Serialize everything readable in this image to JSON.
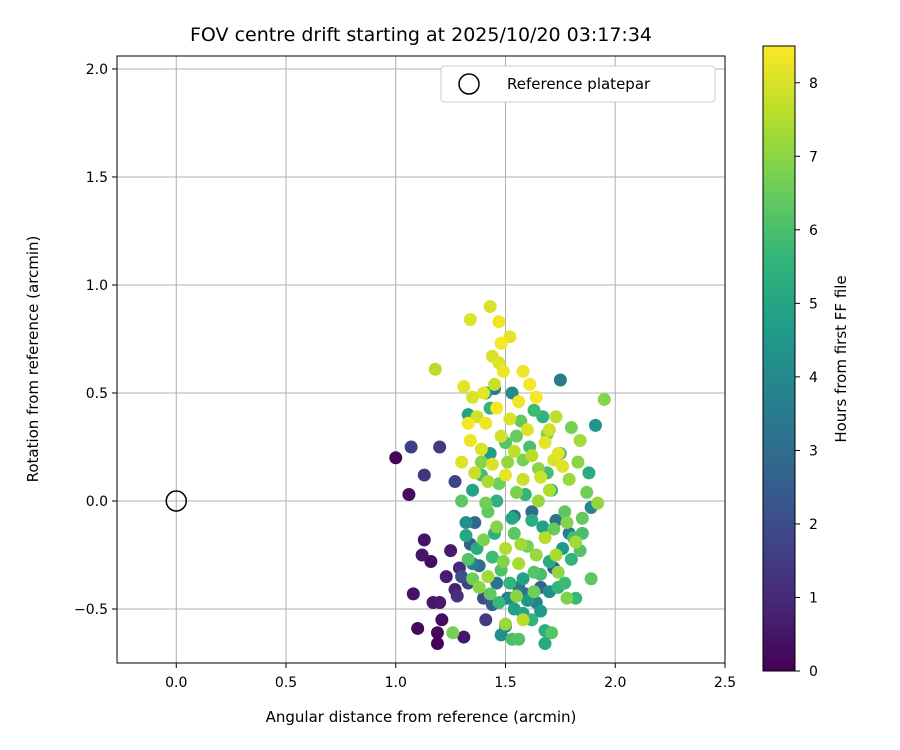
{
  "chart_data": {
    "type": "scatter",
    "title": "FOV centre drift starting at 2025/10/20 03:17:34",
    "xlabel": "Angular distance from reference (arcmin)",
    "ylabel": "Rotation from reference (arcmin)",
    "xlim": [
      -0.27,
      2.5
    ],
    "ylim": [
      -0.75,
      2.06
    ],
    "xticks": [
      0.0,
      0.5,
      1.0,
      1.5,
      2.0,
      2.5
    ],
    "xtick_labels": [
      "0.0",
      "0.5",
      "1.0",
      "1.5",
      "2.0",
      "2.5"
    ],
    "yticks": [
      -0.5,
      0.0,
      0.5,
      1.0,
      1.5,
      2.0
    ],
    "ytick_labels": [
      "−0.5",
      "0.0",
      "0.5",
      "1.0",
      "1.5",
      "2.0"
    ],
    "grid": true,
    "legend": {
      "position": "top-right",
      "entries": [
        "Reference platepar"
      ]
    },
    "reference_point": {
      "x": 0.0,
      "y": 0.0,
      "label": "Reference platepar"
    },
    "colorbar": {
      "label": "Hours from first FF file",
      "range": [
        0,
        8.5
      ],
      "ticks": [
        0,
        1,
        2,
        3,
        4,
        5,
        6,
        7,
        8
      ],
      "colormap": "viridis",
      "colors": [
        "#440154",
        "#482878",
        "#3e4989",
        "#31688e",
        "#26828e",
        "#1f9e89",
        "#35b779",
        "#6ece58",
        "#b5de2b",
        "#fde725"
      ]
    },
    "points": [
      {
        "x": 1.0,
        "y": 0.2,
        "t": 0.1
      },
      {
        "x": 1.06,
        "y": 0.03,
        "t": 0.3
      },
      {
        "x": 1.08,
        "y": -0.43,
        "t": 0.4
      },
      {
        "x": 1.1,
        "y": -0.59,
        "t": 0.2
      },
      {
        "x": 1.12,
        "y": -0.25,
        "t": 0.5
      },
      {
        "x": 1.13,
        "y": -0.18,
        "t": 0.4
      },
      {
        "x": 1.16,
        "y": -0.28,
        "t": 0.3
      },
      {
        "x": 1.17,
        "y": -0.47,
        "t": 0.5
      },
      {
        "x": 1.19,
        "y": -0.61,
        "t": 0.2
      },
      {
        "x": 1.19,
        "y": -0.66,
        "t": 0.1
      },
      {
        "x": 1.2,
        "y": -0.47,
        "t": 0.6
      },
      {
        "x": 1.21,
        "y": -0.55,
        "t": 0.3
      },
      {
        "x": 1.23,
        "y": -0.35,
        "t": 0.7
      },
      {
        "x": 1.25,
        "y": -0.23,
        "t": 0.6
      },
      {
        "x": 1.27,
        "y": -0.41,
        "t": 0.8
      },
      {
        "x": 1.29,
        "y": -0.31,
        "t": 1.0
      },
      {
        "x": 1.31,
        "y": -0.63,
        "t": 0.5
      },
      {
        "x": 1.07,
        "y": 0.25,
        "t": 1.6
      },
      {
        "x": 1.2,
        "y": 0.25,
        "t": 1.5
      },
      {
        "x": 1.13,
        "y": 0.12,
        "t": 1.3
      },
      {
        "x": 1.27,
        "y": 0.09,
        "t": 1.8
      },
      {
        "x": 1.28,
        "y": -0.44,
        "t": 1.2
      },
      {
        "x": 1.33,
        "y": -0.38,
        "t": 1.7
      },
      {
        "x": 1.3,
        "y": -0.35,
        "t": 2.2
      },
      {
        "x": 1.34,
        "y": -0.2,
        "t": 2.5
      },
      {
        "x": 1.36,
        "y": -0.1,
        "t": 2.8
      },
      {
        "x": 1.38,
        "y": -0.3,
        "t": 3.0
      },
      {
        "x": 1.4,
        "y": -0.45,
        "t": 2.0
      },
      {
        "x": 1.41,
        "y": -0.55,
        "t": 1.5
      },
      {
        "x": 1.44,
        "y": -0.48,
        "t": 2.6
      },
      {
        "x": 1.46,
        "y": -0.38,
        "t": 3.2
      },
      {
        "x": 1.48,
        "y": -0.62,
        "t": 4.2
      },
      {
        "x": 1.5,
        "y": -0.58,
        "t": 3.6
      },
      {
        "x": 1.52,
        "y": -0.45,
        "t": 4.0
      },
      {
        "x": 1.54,
        "y": -0.5,
        "t": 4.8
      },
      {
        "x": 1.56,
        "y": -0.4,
        "t": 3.3
      },
      {
        "x": 1.58,
        "y": -0.52,
        "t": 5.0
      },
      {
        "x": 1.6,
        "y": -0.46,
        "t": 4.5
      },
      {
        "x": 1.62,
        "y": -0.55,
        "t": 5.5
      },
      {
        "x": 1.64,
        "y": -0.47,
        "t": 3.8
      },
      {
        "x": 1.66,
        "y": -0.51,
        "t": 4.6
      },
      {
        "x": 1.68,
        "y": -0.6,
        "t": 5.3
      },
      {
        "x": 1.7,
        "y": -0.42,
        "t": 4.1
      },
      {
        "x": 1.72,
        "y": -0.31,
        "t": 2.4
      },
      {
        "x": 1.74,
        "y": -0.4,
        "t": 5.6
      },
      {
        "x": 1.77,
        "y": -0.38,
        "t": 5.8
      },
      {
        "x": 1.82,
        "y": -0.45,
        "t": 5.7
      },
      {
        "x": 1.89,
        "y": -0.36,
        "t": 6.3
      },
      {
        "x": 1.68,
        "y": -0.66,
        "t": 5.1
      },
      {
        "x": 1.71,
        "y": -0.61,
        "t": 6.2
      },
      {
        "x": 1.56,
        "y": -0.64,
        "t": 6.1
      },
      {
        "x": 1.53,
        "y": -0.64,
        "t": 6.0
      },
      {
        "x": 1.26,
        "y": -0.61,
        "t": 6.7
      },
      {
        "x": 1.5,
        "y": -0.57,
        "t": 7.2
      },
      {
        "x": 1.58,
        "y": -0.55,
        "t": 7.6
      },
      {
        "x": 1.78,
        "y": -0.45,
        "t": 6.8
      },
      {
        "x": 1.32,
        "y": -0.1,
        "t": 4.3
      },
      {
        "x": 1.35,
        "y": 0.05,
        "t": 4.9
      },
      {
        "x": 1.37,
        "y": -0.22,
        "t": 5.2
      },
      {
        "x": 1.39,
        "y": 0.12,
        "t": 5.9
      },
      {
        "x": 1.42,
        "y": -0.05,
        "t": 6.4
      },
      {
        "x": 1.43,
        "y": 0.22,
        "t": 4.7
      },
      {
        "x": 1.45,
        "y": -0.15,
        "t": 5.4
      },
      {
        "x": 1.47,
        "y": 0.08,
        "t": 6.6
      },
      {
        "x": 1.49,
        "y": -0.28,
        "t": 6.9
      },
      {
        "x": 1.51,
        "y": 0.18,
        "t": 7.1
      },
      {
        "x": 1.53,
        "y": -0.08,
        "t": 5.0
      },
      {
        "x": 1.55,
        "y": 0.3,
        "t": 6.5
      },
      {
        "x": 1.57,
        "y": -0.2,
        "t": 7.3
      },
      {
        "x": 1.59,
        "y": 0.03,
        "t": 5.6
      },
      {
        "x": 1.61,
        "y": 0.25,
        "t": 6.0
      },
      {
        "x": 1.63,
        "y": -0.33,
        "t": 6.2
      },
      {
        "x": 1.65,
        "y": 0.15,
        "t": 7.0
      },
      {
        "x": 1.67,
        "y": -0.12,
        "t": 4.8
      },
      {
        "x": 1.69,
        "y": 0.31,
        "t": 6.8
      },
      {
        "x": 1.71,
        "y": 0.05,
        "t": 5.7
      },
      {
        "x": 1.73,
        "y": -0.25,
        "t": 7.4
      },
      {
        "x": 1.75,
        "y": 0.22,
        "t": 6.1
      },
      {
        "x": 1.77,
        "y": -0.05,
        "t": 6.3
      },
      {
        "x": 1.79,
        "y": 0.1,
        "t": 7.2
      },
      {
        "x": 1.81,
        "y": -0.17,
        "t": 5.9
      },
      {
        "x": 1.83,
        "y": 0.18,
        "t": 7.0
      },
      {
        "x": 1.85,
        "y": -0.08,
        "t": 6.4
      },
      {
        "x": 1.87,
        "y": 0.04,
        "t": 6.6
      },
      {
        "x": 1.89,
        "y": -0.03,
        "t": 3.9
      },
      {
        "x": 1.91,
        "y": 0.35,
        "t": 4.4
      },
      {
        "x": 1.92,
        "y": -0.01,
        "t": 7.1
      },
      {
        "x": 1.95,
        "y": 0.47,
        "t": 6.9
      },
      {
        "x": 1.88,
        "y": 0.13,
        "t": 5.2
      },
      {
        "x": 1.84,
        "y": 0.28,
        "t": 7.3
      },
      {
        "x": 1.8,
        "y": 0.34,
        "t": 6.7
      },
      {
        "x": 1.33,
        "y": -0.27,
        "t": 6.2
      },
      {
        "x": 1.35,
        "y": -0.36,
        "t": 6.6
      },
      {
        "x": 1.38,
        "y": -0.4,
        "t": 7.0
      },
      {
        "x": 1.4,
        "y": -0.18,
        "t": 6.8
      },
      {
        "x": 1.42,
        "y": -0.35,
        "t": 7.3
      },
      {
        "x": 1.44,
        "y": -0.26,
        "t": 5.8
      },
      {
        "x": 1.46,
        "y": -0.12,
        "t": 6.9
      },
      {
        "x": 1.48,
        "y": -0.32,
        "t": 6.1
      },
      {
        "x": 1.5,
        "y": -0.22,
        "t": 7.5
      },
      {
        "x": 1.52,
        "y": -0.38,
        "t": 5.5
      },
      {
        "x": 1.54,
        "y": -0.15,
        "t": 6.3
      },
      {
        "x": 1.56,
        "y": -0.29,
        "t": 7.4
      },
      {
        "x": 1.58,
        "y": -0.36,
        "t": 4.9
      },
      {
        "x": 1.6,
        "y": -0.21,
        "t": 6.7
      },
      {
        "x": 1.62,
        "y": -0.09,
        "t": 5.3
      },
      {
        "x": 1.64,
        "y": -0.25,
        "t": 7.2
      },
      {
        "x": 1.66,
        "y": -0.34,
        "t": 6.0
      },
      {
        "x": 1.68,
        "y": -0.17,
        "t": 7.6
      },
      {
        "x": 1.7,
        "y": -0.28,
        "t": 5.1
      },
      {
        "x": 1.72,
        "y": -0.13,
        "t": 6.5
      },
      {
        "x": 1.74,
        "y": -0.33,
        "t": 7.1
      },
      {
        "x": 1.76,
        "y": -0.22,
        "t": 4.6
      },
      {
        "x": 1.78,
        "y": -0.1,
        "t": 6.9
      },
      {
        "x": 1.8,
        "y": -0.27,
        "t": 5.6
      },
      {
        "x": 1.82,
        "y": -0.19,
        "t": 7.3
      },
      {
        "x": 1.84,
        "y": -0.23,
        "t": 6.2
      },
      {
        "x": 1.43,
        "y": -0.43,
        "t": 6.4
      },
      {
        "x": 1.47,
        "y": -0.47,
        "t": 5.7
      },
      {
        "x": 1.55,
        "y": -0.44,
        "t": 7.0
      },
      {
        "x": 1.63,
        "y": -0.42,
        "t": 6.6
      },
      {
        "x": 1.36,
        "y": 0.13,
        "t": 7.8
      },
      {
        "x": 1.39,
        "y": 0.24,
        "t": 8.1
      },
      {
        "x": 1.41,
        "y": 0.36,
        "t": 8.3
      },
      {
        "x": 1.44,
        "y": 0.17,
        "t": 8.0
      },
      {
        "x": 1.46,
        "y": 0.43,
        "t": 8.4
      },
      {
        "x": 1.48,
        "y": 0.3,
        "t": 7.9
      },
      {
        "x": 1.5,
        "y": 0.12,
        "t": 8.2
      },
      {
        "x": 1.52,
        "y": 0.38,
        "t": 8.0
      },
      {
        "x": 1.54,
        "y": 0.23,
        "t": 7.7
      },
      {
        "x": 1.56,
        "y": 0.46,
        "t": 8.3
      },
      {
        "x": 1.58,
        "y": 0.1,
        "t": 7.8
      },
      {
        "x": 1.6,
        "y": 0.33,
        "t": 8.1
      },
      {
        "x": 1.62,
        "y": 0.21,
        "t": 7.6
      },
      {
        "x": 1.64,
        "y": 0.48,
        "t": 8.4
      },
      {
        "x": 1.66,
        "y": 0.11,
        "t": 7.9
      },
      {
        "x": 1.68,
        "y": 0.27,
        "t": 8.2
      },
      {
        "x": 1.7,
        "y": 0.05,
        "t": 7.5
      },
      {
        "x": 1.72,
        "y": 0.19,
        "t": 8.0
      },
      {
        "x": 1.34,
        "y": 0.28,
        "t": 8.3
      },
      {
        "x": 1.37,
        "y": 0.39,
        "t": 7.9
      },
      {
        "x": 1.3,
        "y": 0.18,
        "t": 8.1
      },
      {
        "x": 1.33,
        "y": 0.36,
        "t": 8.4
      },
      {
        "x": 1.4,
        "y": 0.5,
        "t": 8.2
      },
      {
        "x": 1.45,
        "y": 0.54,
        "t": 7.8
      },
      {
        "x": 1.49,
        "y": 0.6,
        "t": 8.3
      },
      {
        "x": 1.47,
        "y": 0.64,
        "t": 8.1
      },
      {
        "x": 1.44,
        "y": 0.67,
        "t": 8.0
      },
      {
        "x": 1.52,
        "y": 0.76,
        "t": 8.2
      },
      {
        "x": 1.48,
        "y": 0.73,
        "t": 8.4
      },
      {
        "x": 1.43,
        "y": 0.9,
        "t": 8.0
      },
      {
        "x": 1.47,
        "y": 0.83,
        "t": 8.3
      },
      {
        "x": 1.34,
        "y": 0.84,
        "t": 8.1
      },
      {
        "x": 1.18,
        "y": 0.61,
        "t": 7.6
      },
      {
        "x": 1.31,
        "y": 0.53,
        "t": 8.2
      },
      {
        "x": 1.35,
        "y": 0.48,
        "t": 8.0
      },
      {
        "x": 1.58,
        "y": 0.6,
        "t": 8.3
      },
      {
        "x": 1.61,
        "y": 0.54,
        "t": 8.4
      },
      {
        "x": 1.73,
        "y": 0.39,
        "t": 7.7
      },
      {
        "x": 1.7,
        "y": 0.33,
        "t": 7.9
      },
      {
        "x": 1.76,
        "y": 0.16,
        "t": 8.1
      },
      {
        "x": 1.74,
        "y": 0.22,
        "t": 8.2
      },
      {
        "x": 1.41,
        "y": 0.5,
        "t": 4.6
      },
      {
        "x": 1.45,
        "y": 0.52,
        "t": 3.4
      },
      {
        "x": 1.53,
        "y": 0.5,
        "t": 4.1
      },
      {
        "x": 1.75,
        "y": 0.56,
        "t": 3.5
      },
      {
        "x": 1.33,
        "y": 0.4,
        "t": 4.9
      },
      {
        "x": 1.43,
        "y": 0.43,
        "t": 5.6
      },
      {
        "x": 1.63,
        "y": 0.42,
        "t": 5.8
      },
      {
        "x": 1.67,
        "y": 0.39,
        "t": 5.5
      },
      {
        "x": 1.57,
        "y": 0.37,
        "t": 6.4
      },
      {
        "x": 1.5,
        "y": 0.27,
        "t": 6.2
      },
      {
        "x": 1.58,
        "y": 0.19,
        "t": 6.7
      },
      {
        "x": 1.69,
        "y": 0.13,
        "t": 5.9
      },
      {
        "x": 1.55,
        "y": 0.04,
        "t": 6.8
      },
      {
        "x": 1.41,
        "y": -0.01,
        "t": 6.6
      },
      {
        "x": 1.46,
        "y": 0.0,
        "t": 5.4
      },
      {
        "x": 1.65,
        "y": 0.0,
        "t": 7.2
      },
      {
        "x": 1.39,
        "y": 0.18,
        "t": 6.9
      },
      {
        "x": 1.42,
        "y": 0.09,
        "t": 7.4
      },
      {
        "x": 1.3,
        "y": 0.0,
        "t": 6.3
      },
      {
        "x": 1.32,
        "y": -0.16,
        "t": 5.0
      },
      {
        "x": 1.35,
        "y": -0.29,
        "t": 3.7
      },
      {
        "x": 1.54,
        "y": -0.07,
        "t": 3.1
      },
      {
        "x": 1.62,
        "y": -0.05,
        "t": 2.9
      },
      {
        "x": 1.73,
        "y": -0.09,
        "t": 3.3
      },
      {
        "x": 1.79,
        "y": -0.15,
        "t": 3.6
      },
      {
        "x": 1.85,
        "y": -0.15,
        "t": 6.0
      },
      {
        "x": 1.66,
        "y": -0.4,
        "t": 2.7
      },
      {
        "x": 1.59,
        "y": -0.43,
        "t": 3.0
      },
      {
        "x": 1.51,
        "y": -0.45,
        "t": 2.8
      }
    ]
  }
}
